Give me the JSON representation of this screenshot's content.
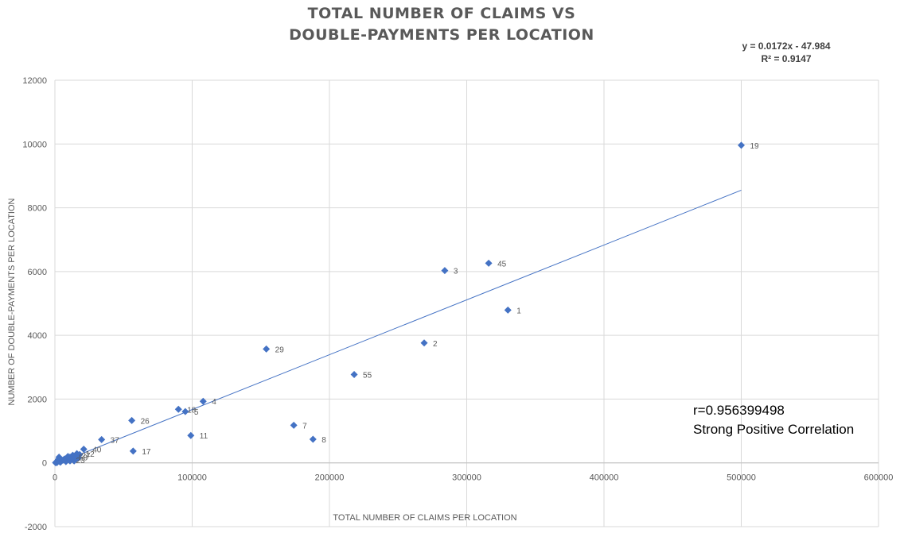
{
  "chart_data": {
    "type": "scatter",
    "title_lines": [
      "TOTAL NUMBER OF CLAIMS VS",
      "DOUBLE-PAYMENTS PER LOCATION"
    ],
    "xlabel": "TOTAL NUMBER OF CLAIMS PER LOCATION",
    "ylabel": "NUMBER OF DOUBLE-PAYMENTS PER LOCATION",
    "xlim": [
      0,
      600000
    ],
    "ylim": [
      -2000,
      12000
    ],
    "xticks": [
      0,
      100000,
      200000,
      300000,
      400000,
      500000,
      600000
    ],
    "yticks": [
      -2000,
      0,
      2000,
      4000,
      6000,
      8000,
      10000,
      12000
    ],
    "grid": true,
    "marker": "diamond",
    "color": "#4472c4",
    "trendline": {
      "slope": 0.0172,
      "intercept": -47.984,
      "x_range": [
        0,
        500000
      ],
      "equation": "y = 0.0172x - 47.984",
      "r_squared": "R² = 0.9147",
      "color": "#4472c4"
    },
    "points": [
      {
        "x": 500000,
        "y": 9960,
        "label": "19"
      },
      {
        "x": 316000,
        "y": 6260,
        "label": "45"
      },
      {
        "x": 284000,
        "y": 6030,
        "label": "3"
      },
      {
        "x": 330000,
        "y": 4790,
        "label": "1"
      },
      {
        "x": 269000,
        "y": 3760,
        "label": "2"
      },
      {
        "x": 154000,
        "y": 3570,
        "label": "29"
      },
      {
        "x": 218000,
        "y": 2770,
        "label": "55"
      },
      {
        "x": 108000,
        "y": 1930,
        "label": "4"
      },
      {
        "x": 90000,
        "y": 1680,
        "label": "18"
      },
      {
        "x": 95000,
        "y": 1610,
        "label": "5"
      },
      {
        "x": 174000,
        "y": 1180,
        "label": "7"
      },
      {
        "x": 56000,
        "y": 1330,
        "label": "26"
      },
      {
        "x": 99000,
        "y": 860,
        "label": "11"
      },
      {
        "x": 188000,
        "y": 740,
        "label": "8"
      },
      {
        "x": 34000,
        "y": 730,
        "label": "37"
      },
      {
        "x": 57000,
        "y": 370,
        "label": "17"
      },
      {
        "x": 21000,
        "y": 430,
        "label": "40"
      },
      {
        "x": 16000,
        "y": 290,
        "label": "12"
      },
      {
        "x": 13000,
        "y": 240,
        "label": "27"
      },
      {
        "x": 11000,
        "y": 180,
        "label": "58"
      },
      {
        "x": 9000,
        "y": 90,
        "label": "23"
      },
      {
        "x": 15000,
        "y": 200,
        "label": ""
      },
      {
        "x": 12000,
        "y": 150,
        "label": ""
      },
      {
        "x": 10000,
        "y": 130,
        "label": ""
      },
      {
        "x": 18000,
        "y": 260,
        "label": ""
      },
      {
        "x": 14000,
        "y": 60,
        "label": ""
      },
      {
        "x": 8000,
        "y": 40,
        "label": ""
      },
      {
        "x": 7000,
        "y": 120,
        "label": ""
      },
      {
        "x": 5000,
        "y": 70,
        "label": ""
      },
      {
        "x": 3000,
        "y": 180,
        "label": ""
      },
      {
        "x": 4000,
        "y": 20,
        "label": ""
      },
      {
        "x": 2000,
        "y": 50,
        "label": ""
      },
      {
        "x": 1500,
        "y": 10,
        "label": ""
      },
      {
        "x": 1000,
        "y": 30,
        "label": ""
      },
      {
        "x": 500,
        "y": 5,
        "label": ""
      },
      {
        "x": 6000,
        "y": 90,
        "label": ""
      },
      {
        "x": 11000,
        "y": 60,
        "label": ""
      },
      {
        "x": 13000,
        "y": 110,
        "label": ""
      },
      {
        "x": 17000,
        "y": 150,
        "label": ""
      },
      {
        "x": 9500,
        "y": 200,
        "label": ""
      },
      {
        "x": 2500,
        "y": 110,
        "label": ""
      },
      {
        "x": 3500,
        "y": 40,
        "label": ""
      }
    ]
  },
  "annotations": {
    "r_value": "r=0.956399498",
    "correlation": "Strong Positive Correlation"
  }
}
